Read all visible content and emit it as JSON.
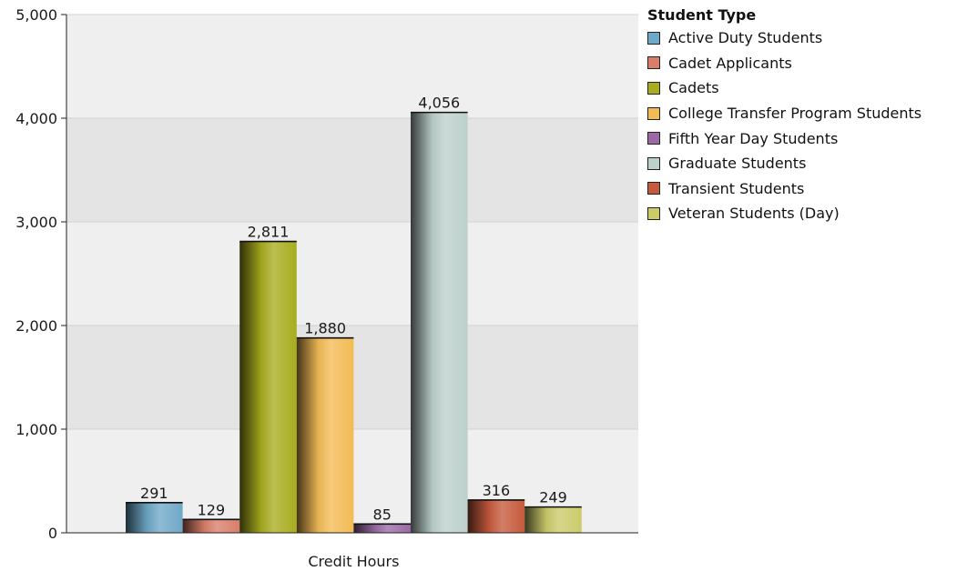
{
  "chart_data": {
    "type": "bar",
    "categories": [
      "Credit Hours"
    ],
    "ylim": [
      0,
      5000
    ],
    "yticks": [
      "0",
      "1,000",
      "2,000",
      "3,000",
      "4,000",
      "5,000"
    ],
    "ytick_values": [
      0,
      1000,
      2000,
      3000,
      4000,
      5000
    ],
    "grid": true,
    "legend_placement": "top-right",
    "legend_title": "Student Type",
    "series": [
      {
        "name": "Active Duty Students",
        "values": [
          291
        ],
        "label": "291",
        "color": "#6FA8C8"
      },
      {
        "name": "Cadet Applicants",
        "values": [
          129
        ],
        "label": "129",
        "color": "#D97E6A"
      },
      {
        "name": "Cadets",
        "values": [
          2811
        ],
        "label": "2,811",
        "color": "#A8AC1E"
      },
      {
        "name": "College Transfer Program Students",
        "values": [
          1880
        ],
        "label": "1,880",
        "color": "#F2BB55"
      },
      {
        "name": "Fifth Year Day Students",
        "values": [
          85
        ],
        "label": "85",
        "color": "#9B6AA6"
      },
      {
        "name": "Graduate Students",
        "values": [
          4056
        ],
        "label": "4,056",
        "color": "#BCD0CC"
      },
      {
        "name": "Transient Students",
        "values": [
          316
        ],
        "label": "316",
        "color": "#C65A3C"
      },
      {
        "name": "Veteran Students (Day)",
        "values": [
          249
        ],
        "label": "249",
        "color": "#CBCB6A"
      }
    ]
  }
}
